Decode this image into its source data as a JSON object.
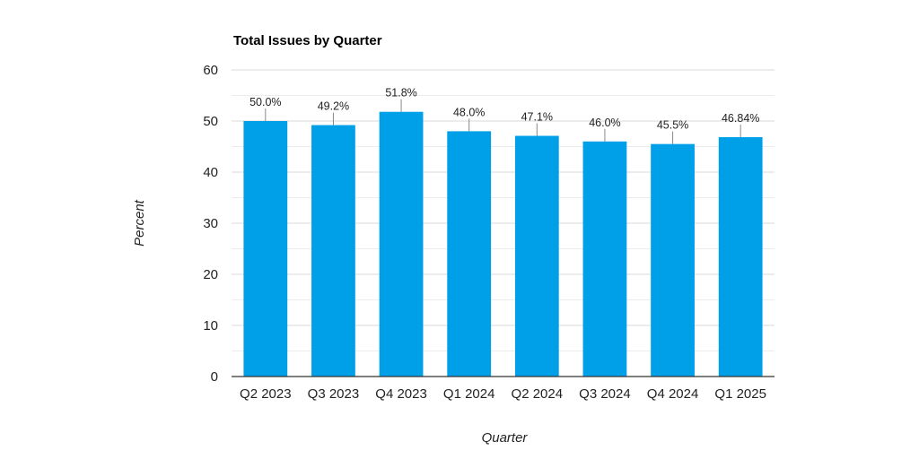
{
  "chart_data": {
    "type": "bar",
    "title": "Total Issues by Quarter",
    "xlabel": "Quarter",
    "ylabel": "Percent",
    "categories": [
      "Q2 2023",
      "Q3 2023",
      "Q4 2023",
      "Q1 2024",
      "Q2 2024",
      "Q3 2024",
      "Q4 2024",
      "Q1 2025"
    ],
    "values": [
      50.0,
      49.2,
      51.8,
      48.0,
      47.1,
      46.0,
      45.5,
      46.84
    ],
    "data_labels": [
      "50.0%",
      "49.2%",
      "51.8%",
      "48.0%",
      "47.1%",
      "46.0%",
      "45.5%",
      "46.84%"
    ],
    "ylim": [
      0,
      60
    ],
    "yticks": [
      0,
      10,
      20,
      30,
      40,
      50,
      60
    ],
    "grid": true,
    "bar_color": "#00a0e9",
    "gridline_color": "#d9d9d9",
    "minor_gridline_color": "#ececec"
  }
}
